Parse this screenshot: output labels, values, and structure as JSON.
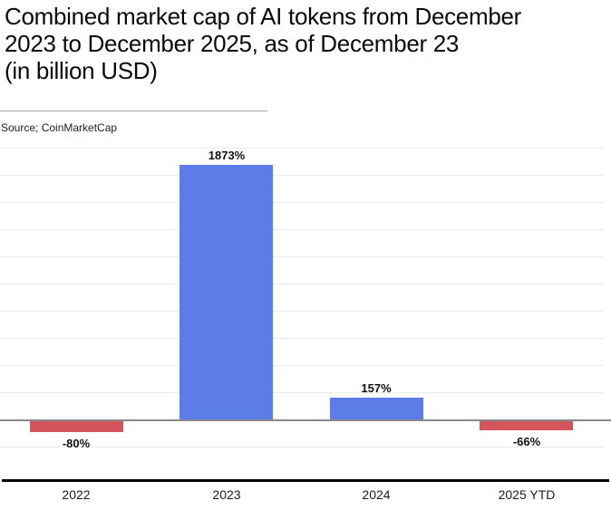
{
  "header": {
    "title_lines": [
      "Combined market cap of AI tokens from December",
      "2023 to December 2025, as of December 23",
      "(in billion USD)"
    ],
    "source": "Source; CoinMarketCap"
  },
  "chart_data": {
    "type": "bar",
    "title": "Combined market cap of AI tokens from December 2023 to December 2025, as of December 23 (in billion USD)",
    "categories": [
      "2022",
      "2023",
      "2024",
      "2025 YTD"
    ],
    "values": [
      -80,
      1873,
      157,
      -66
    ],
    "value_labels": [
      "-80%",
      "1873%",
      "157%",
      "-66%"
    ],
    "unit": "%",
    "xlabel": "",
    "ylabel": "",
    "ylim": [
      -440,
      2050
    ],
    "gridline_step": 200,
    "grid": true,
    "legend": false,
    "source": "Source; CoinMarketCap",
    "colors": {
      "positive_bar": "#5E7CE8",
      "negative_bar": "#D4555B"
    }
  },
  "colors": {
    "background": "#ffffff",
    "gridline": "#ebebeb",
    "zero_axis": "#8a8a8a",
    "baseline": "#000000",
    "divider": "#a6a6a6",
    "title_text": "#0a0a0a",
    "label_text": "#111111"
  }
}
